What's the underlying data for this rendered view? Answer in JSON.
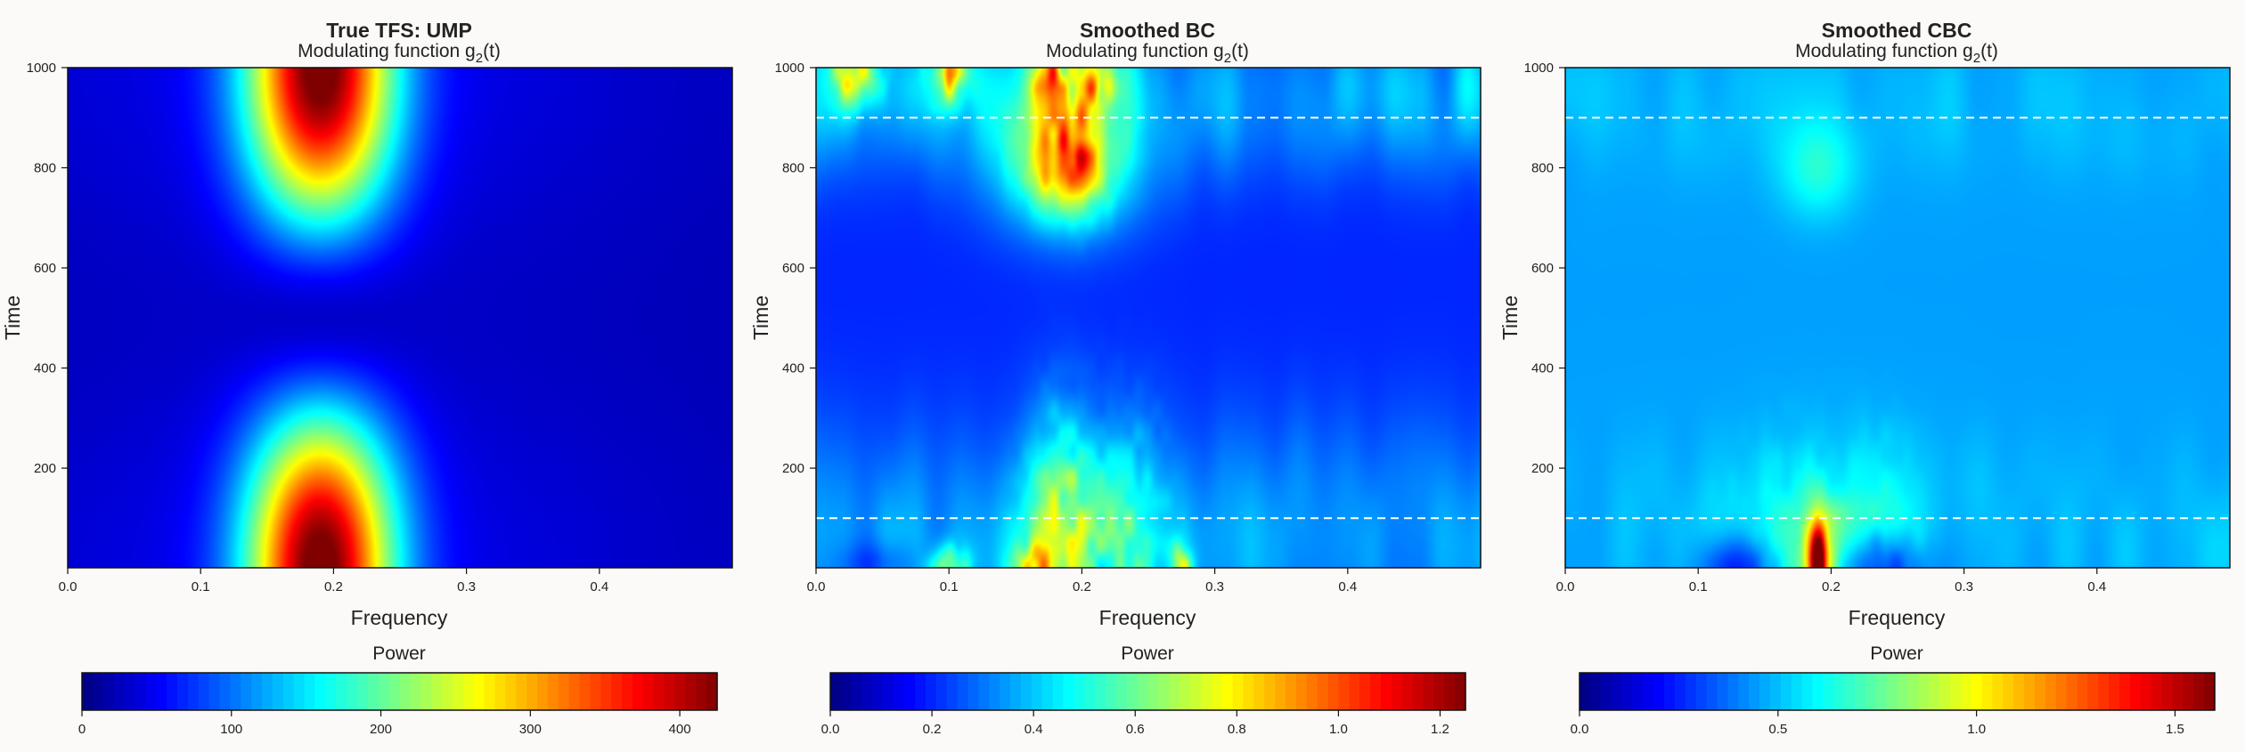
{
  "chart_data": [
    {
      "type": "heatmap",
      "title": "True TFS: UMP",
      "subtitle_main": "Modulating function g",
      "subtitle_sub": "2",
      "subtitle_tail": "(t)",
      "xlabel": "Frequency",
      "ylabel": "Time",
      "xlim": [
        0.0,
        0.5
      ],
      "ylim": [
        1,
        1000
      ],
      "xticks": [
        "0.0",
        "0.1",
        "0.2",
        "0.3",
        "0.4"
      ],
      "yticks": [
        "200",
        "400",
        "600",
        "800",
        "1000"
      ],
      "colorbar_title": "Power",
      "colorbar_range": [
        0,
        425
      ],
      "colorbar_ticks": [
        "0",
        "100",
        "200",
        "300",
        "400"
      ],
      "colorbar_tick_values": [
        0,
        100,
        200,
        300,
        400
      ],
      "colormap": "jet",
      "peak_frequency": 0.19,
      "peak_times": [
        1,
        1000
      ],
      "peak_value": 425,
      "reference_lines": []
    },
    {
      "type": "heatmap",
      "title": "Smoothed BC",
      "subtitle_main": "Modulating function g",
      "subtitle_sub": "2",
      "subtitle_tail": "(t)",
      "xlabel": "Frequency",
      "ylabel": "Time",
      "xlim": [
        0.0,
        0.5
      ],
      "ylim": [
        1,
        1000
      ],
      "xticks": [
        "0.0",
        "0.1",
        "0.2",
        "0.3",
        "0.4"
      ],
      "yticks": [
        "200",
        "400",
        "600",
        "800",
        "1000"
      ],
      "colorbar_title": "Power",
      "colorbar_range": [
        0,
        1.25
      ],
      "colorbar_ticks": [
        "0.0",
        "0.2",
        "0.4",
        "0.6",
        "0.8",
        "1.0",
        "1.2"
      ],
      "colorbar_tick_values": [
        0,
        0.2,
        0.4,
        0.6,
        0.8,
        1.0,
        1.2
      ],
      "colormap": "jet",
      "background_value": 0.2,
      "reference_lines": [
        100,
        900
      ]
    },
    {
      "type": "heatmap",
      "title": "Smoothed CBC",
      "subtitle_main": "Modulating function g",
      "subtitle_sub": "2",
      "subtitle_tail": "(t)",
      "xlabel": "Frequency",
      "ylabel": "Time",
      "xlim": [
        0.0,
        0.5
      ],
      "ylim": [
        1,
        1000
      ],
      "xticks": [
        "0.0",
        "0.1",
        "0.2",
        "0.3",
        "0.4"
      ],
      "yticks": [
        "200",
        "400",
        "600",
        "800",
        "1000"
      ],
      "colorbar_title": "Power",
      "colorbar_range": [
        0,
        1.6
      ],
      "colorbar_ticks": [
        "0.0",
        "0.5",
        "1.0",
        "1.5"
      ],
      "colorbar_tick_values": [
        0,
        0.5,
        1.0,
        1.5
      ],
      "colormap": "jet",
      "background_value": 0.45,
      "reference_lines": [
        100,
        900
      ]
    }
  ]
}
